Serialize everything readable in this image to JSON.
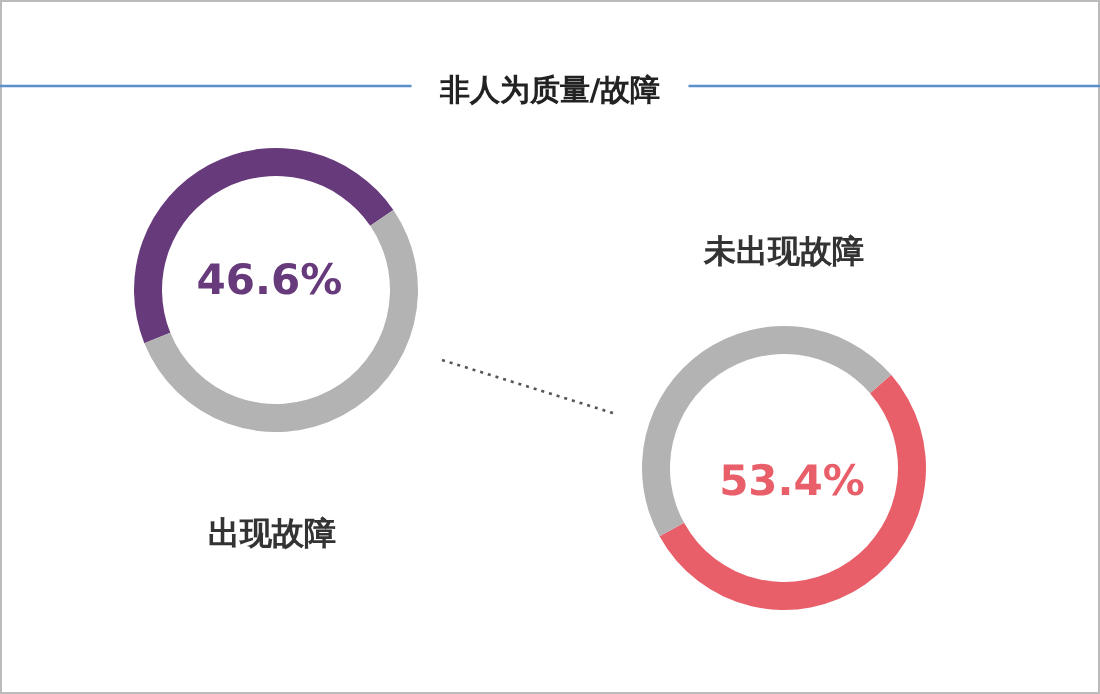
{
  "chart_data": [
    {
      "type": "other",
      "title": "非人为质量/故障"
    },
    {
      "type": "donut",
      "title": "出现故障",
      "categories": [
        null,
        null
      ],
      "values": [
        46.6,
        53.4
      ],
      "colors": [
        "#673a7c",
        "#b3b3b3"
      ],
      "value_labels": [
        "46.6%",
        null
      ]
    },
    {
      "type": "donut",
      "title": "未出现故障",
      "categories": [
        null,
        null
      ],
      "values": [
        53.4,
        46.6
      ],
      "colors": [
        "#e85f6a",
        "#b3b3b3"
      ],
      "value_labels": [
        "53.4%",
        null
      ]
    }
  ]
}
